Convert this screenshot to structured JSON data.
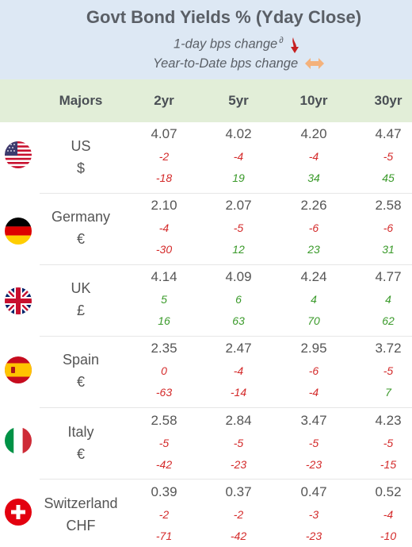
{
  "title": "Govt Bond Yields %  (Yday Close)",
  "legend": {
    "one_day": "1-day bps change",
    "one_day_mark": "∂",
    "ytd": "Year-to-Date bps change"
  },
  "columns": [
    "Majors",
    "2yr",
    "5yr",
    "10yr",
    "30yr"
  ],
  "colors": {
    "negative": "#d42a2a",
    "positive": "#3a9a2a",
    "header_bg": "#dde8f4",
    "colhead_bg": "#e2eed8"
  },
  "chart_data": {
    "type": "table",
    "title": "Govt Bond Yields %  (Yday Close)",
    "columns": [
      "2yr",
      "5yr",
      "10yr",
      "30yr"
    ],
    "rows": [
      {
        "country": "US",
        "currency": "$",
        "flag": "us-flag-icon",
        "yields": [
          "4.07",
          "4.02",
          "4.20",
          "4.47"
        ],
        "day_change": [
          "-2",
          "-4",
          "-4",
          "-5"
        ],
        "ytd_change": [
          "-18",
          "19",
          "34",
          "45"
        ]
      },
      {
        "country": "Germany",
        "currency": "€",
        "flag": "germany-flag-icon",
        "yields": [
          "2.10",
          "2.07",
          "2.26",
          "2.58"
        ],
        "day_change": [
          "-4",
          "-5",
          "-6",
          "-6"
        ],
        "ytd_change": [
          "-30",
          "12",
          "23",
          "31"
        ]
      },
      {
        "country": "UK",
        "currency": "£",
        "flag": "uk-flag-icon",
        "yields": [
          "4.14",
          "4.09",
          "4.24",
          "4.77"
        ],
        "day_change": [
          "5",
          "6",
          "4",
          "4"
        ],
        "ytd_change": [
          "16",
          "63",
          "70",
          "62"
        ]
      },
      {
        "country": "Spain",
        "currency": "€",
        "flag": "spain-flag-icon",
        "yields": [
          "2.35",
          "2.47",
          "2.95",
          "3.72"
        ],
        "day_change": [
          "0",
          "-4",
          "-6",
          "-5"
        ],
        "ytd_change": [
          "-63",
          "-14",
          "-4",
          "7"
        ]
      },
      {
        "country": "Italy",
        "currency": "€",
        "flag": "italy-flag-icon",
        "yields": [
          "2.58",
          "2.84",
          "3.47",
          "4.23"
        ],
        "day_change": [
          "-5",
          "-5",
          "-5",
          "-5"
        ],
        "ytd_change": [
          "-42",
          "-23",
          "-23",
          "-15"
        ]
      },
      {
        "country": "Switzerland",
        "currency": "CHF",
        "flag": "switzerland-flag-icon",
        "yields": [
          "0.39",
          "0.37",
          "0.47",
          "0.52"
        ],
        "day_change": [
          "-2",
          "-2",
          "-3",
          "-4"
        ],
        "ytd_change": [
          "-71",
          "-42",
          "-23",
          "-10"
        ]
      }
    ]
  }
}
